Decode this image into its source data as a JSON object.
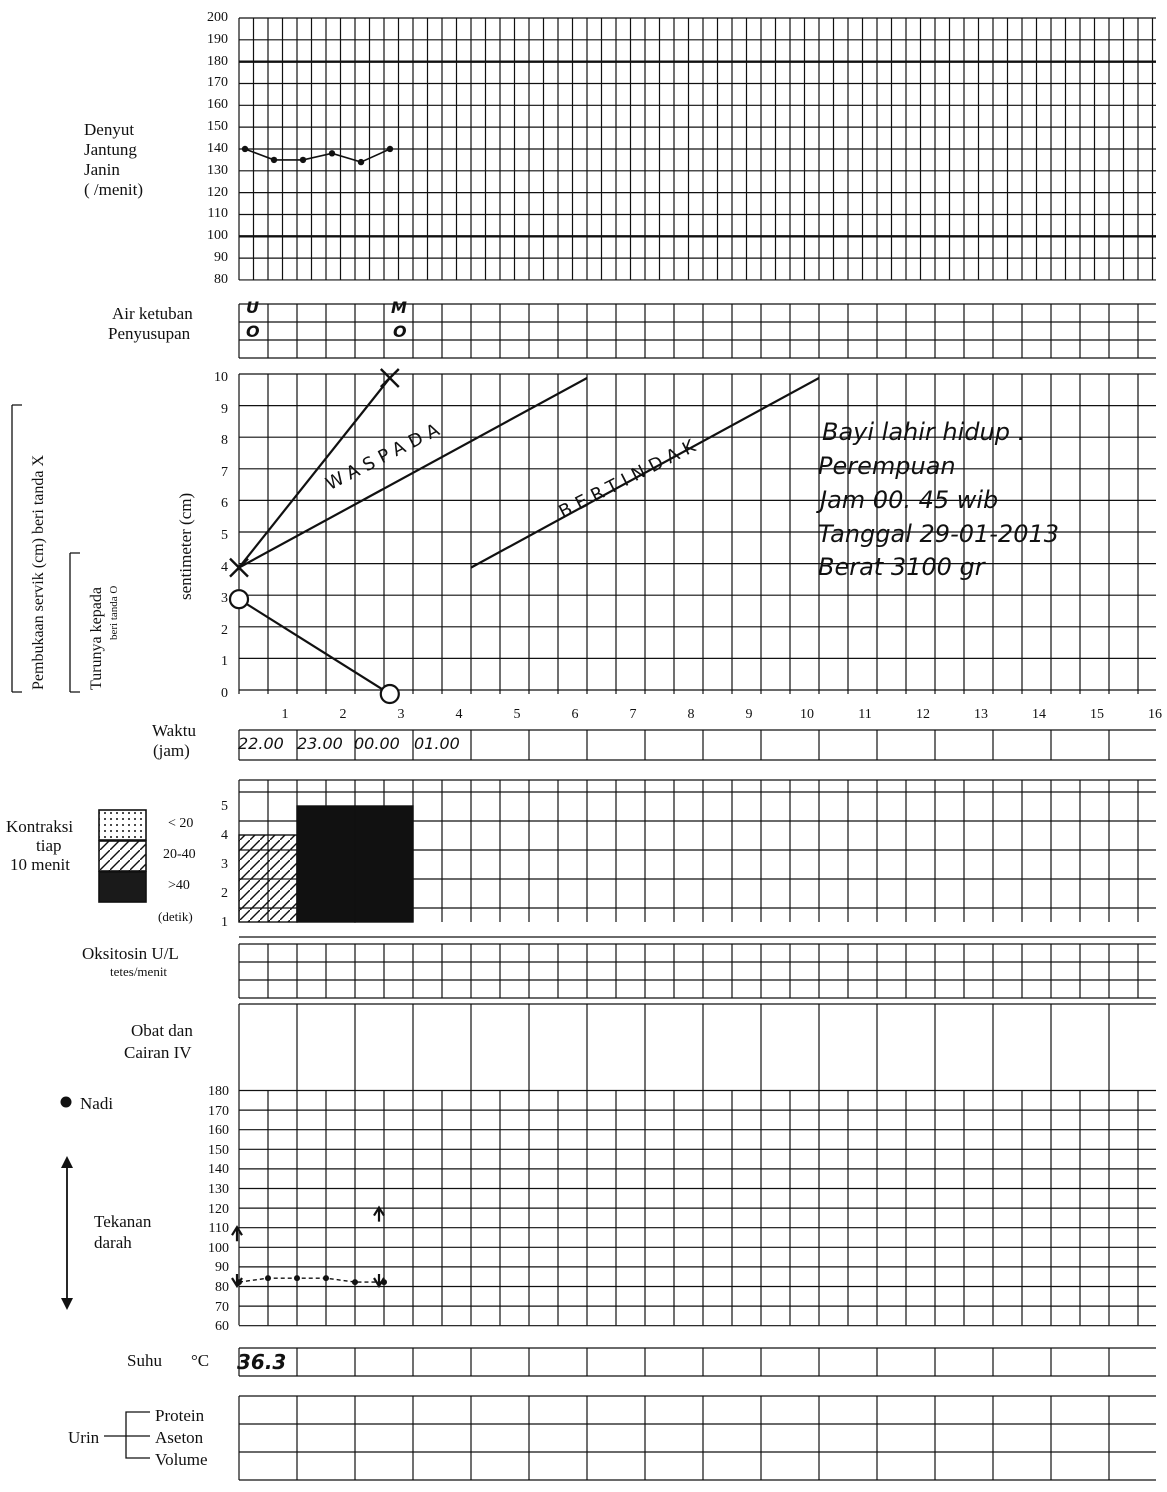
{
  "fhr": {
    "label_lines": [
      "Denyut",
      "Jantung",
      "Janin",
      "(      /menit)"
    ],
    "ticks": [
      "200",
      "190",
      "180",
      "170",
      "160",
      "150",
      "140",
      "130",
      "120",
      "110",
      "100",
      "90",
      "80"
    ],
    "recorded_values": [
      140,
      135,
      135,
      138,
      134,
      140
    ]
  },
  "amnion": {
    "label_air": "Air ketuban",
    "label_penyusupan": "Penyusupan",
    "entries": [
      {
        "air": "U",
        "penyusupan": "O"
      },
      {
        "air": "M",
        "penyusupan": "O"
      }
    ]
  },
  "cervix": {
    "vertical_label_1": "Pembukaan servik (cm) beri tanda X",
    "vertical_label_2": "Turunya kepada",
    "vertical_label_2b": "beri tanda O",
    "axis_label": "sentimeter (cm)",
    "ticks": [
      "10",
      "9",
      "8",
      "7",
      "6",
      "5",
      "4",
      "3",
      "2",
      "1",
      "0"
    ],
    "hour_ticks": [
      "1",
      "2",
      "3",
      "4",
      "5",
      "6",
      "7",
      "8",
      "9",
      "10",
      "11",
      "12",
      "13",
      "14",
      "15",
      "16"
    ],
    "alert_line_label": "WASPADA",
    "action_line_label": "BERTINDAK",
    "dilatation_X": [
      {
        "hour": 0,
        "cm": 4
      },
      {
        "hour": 2.6,
        "cm": 10
      }
    ],
    "descent_O": [
      {
        "hour": 0,
        "value": 3
      },
      {
        "hour": 2.6,
        "value": 0
      }
    ],
    "notes": [
      "Bayi lahir hidup .",
      "Perempuan",
      "Jam 00. 45 wib",
      "Tanggal 29-01-2013",
      "Berat  3100 gr"
    ]
  },
  "time": {
    "label_1": "Waktu",
    "label_2": "(jam)",
    "entries": [
      "22.00",
      "23.00",
      "00.00",
      "01.00"
    ]
  },
  "contractions": {
    "label_lines": [
      "Kontraksi",
      "tiap",
      "10 menit"
    ],
    "legend": [
      "< 20",
      "20-40",
      ">40"
    ],
    "unit": "(detik)",
    "ticks": [
      "5",
      "4",
      "3",
      "2",
      "1"
    ],
    "recorded": [
      {
        "half_hour": 1,
        "count": 3,
        "type": "20-40"
      },
      {
        "half_hour": 2,
        "count": 4,
        "type": ">40"
      },
      {
        "half_hour": 3,
        "count": 4,
        "type": ">40"
      }
    ]
  },
  "oxytocin": {
    "label_1": "Oksitosin U/L",
    "label_2": "tetes/menit"
  },
  "drugs": {
    "label_1": "Obat dan",
    "label_2": "Cairan IV"
  },
  "vitals": {
    "pulse_label": "Nadi",
    "bp_label_1": "Tekanan",
    "bp_label_2": "darah",
    "ticks": [
      "180",
      "170",
      "160",
      "150",
      "140",
      "130",
      "120",
      "110",
      "100",
      "90",
      "80",
      "70",
      "60"
    ],
    "pulse_values": [
      82,
      84,
      84,
      84,
      82,
      82
    ],
    "bp_systolic": [
      110,
      120
    ],
    "bp_diastolic": [
      80,
      80
    ]
  },
  "temperature": {
    "label": "Suhu",
    "unit": "°C",
    "value": "36.3"
  },
  "urine": {
    "label": "Urin",
    "rows": [
      "Protein",
      "Aseton",
      "Volume"
    ]
  }
}
